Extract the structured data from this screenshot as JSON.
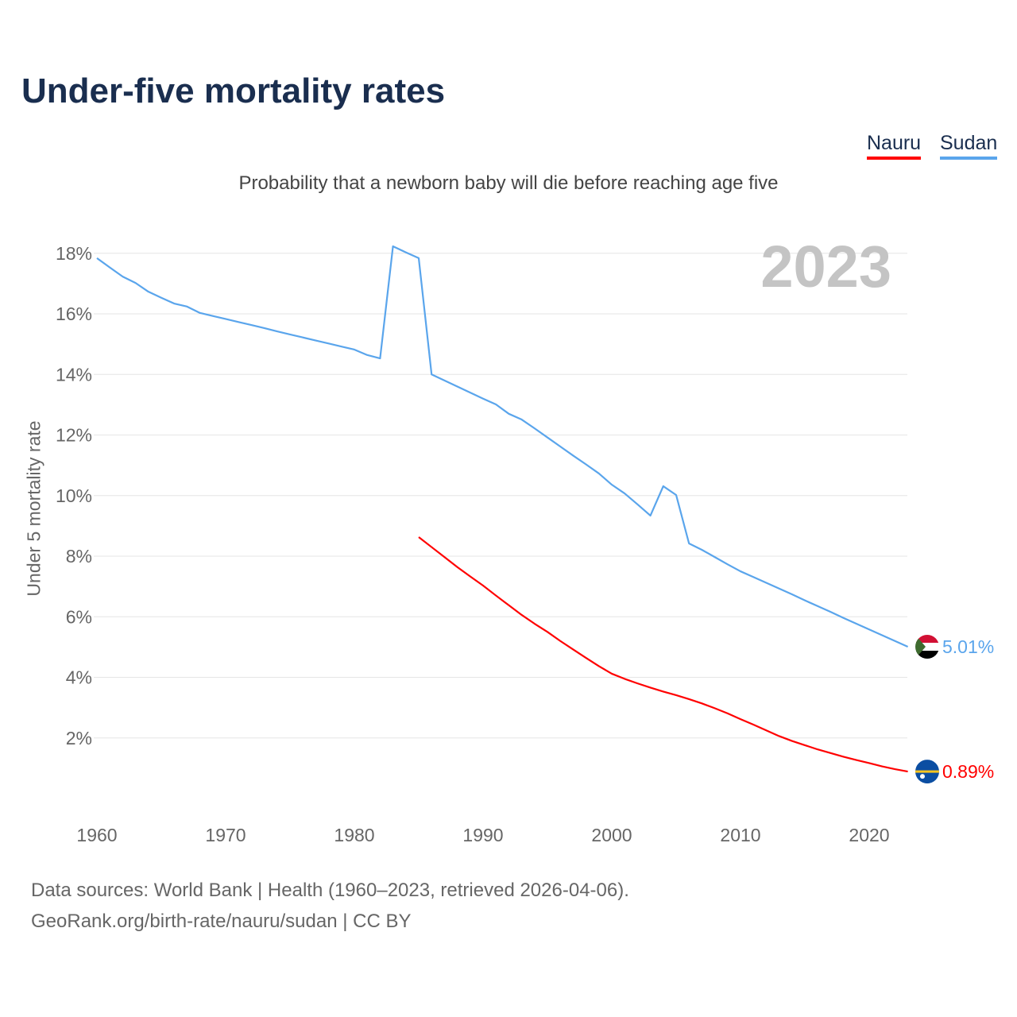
{
  "chart_data": {
    "type": "line",
    "title": "Under-five mortality rates",
    "subtitle": "Probability that a newborn baby will die before reaching age five",
    "ylabel": "Under 5 mortality rate",
    "xlabel": "",
    "year_label": "2023",
    "xlim": [
      1960,
      2023
    ],
    "ylim": [
      0,
      18.5
    ],
    "x_ticks": [
      "1960",
      "1970",
      "1980",
      "1990",
      "2000",
      "2010",
      "2020"
    ],
    "y_ticks": [
      "2%",
      "4%",
      "6%",
      "8%",
      "10%",
      "12%",
      "14%",
      "16%",
      "18%"
    ],
    "grid": true,
    "legend_position": "top-right",
    "series": [
      {
        "name": "Nauru",
        "color": "#ff0000",
        "start_year": 1985,
        "end_label": "0.89%",
        "values": [
          8.63,
          8.3,
          7.97,
          7.64,
          7.33,
          7.03,
          6.7,
          6.38,
          6.06,
          5.77,
          5.5,
          5.2,
          4.92,
          4.64,
          4.37,
          4.12,
          3.95,
          3.8,
          3.66,
          3.53,
          3.41,
          3.28,
          3.14,
          2.98,
          2.81,
          2.62,
          2.44,
          2.25,
          2.06,
          1.9,
          1.76,
          1.62,
          1.5,
          1.38,
          1.27,
          1.17,
          1.06,
          0.97,
          0.89
        ]
      },
      {
        "name": "Sudan",
        "color": "#5aa5ec",
        "start_year": 1960,
        "end_label": "5.01%",
        "values": [
          17.84,
          17.53,
          17.23,
          17.02,
          16.73,
          16.53,
          16.34,
          16.24,
          16.03,
          15.93,
          15.83,
          15.73,
          15.63,
          15.53,
          15.42,
          15.32,
          15.22,
          15.12,
          15.02,
          14.92,
          14.82,
          14.64,
          14.53,
          18.23,
          18.03,
          17.84,
          14.0,
          13.8,
          13.6,
          13.4,
          13.2,
          13.01,
          12.7,
          12.51,
          12.22,
          11.92,
          11.62,
          11.32,
          11.03,
          10.73,
          10.36,
          10.07,
          9.71,
          9.34,
          10.31,
          10.02,
          8.42,
          8.21,
          7.97,
          7.73,
          7.5,
          7.31,
          7.12,
          6.93,
          6.74,
          6.54,
          6.35,
          6.16,
          5.96,
          5.77,
          5.58,
          5.39,
          5.2,
          5.01
        ]
      }
    ]
  },
  "footer": {
    "line1": "Data sources: World Bank | Health (1960–2023, retrieved 2026-04-06).",
    "line2": "GeoRank.org/birth-rate/nauru/sudan | CC BY"
  }
}
